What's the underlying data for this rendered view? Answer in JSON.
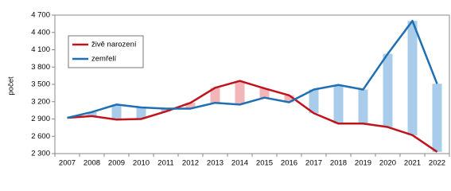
{
  "chart_data": {
    "type": "line",
    "ylabel": "počet",
    "categories": [
      "2007",
      "2008",
      "2009",
      "2010",
      "2011",
      "2012",
      "2013",
      "2014",
      "2015",
      "2016",
      "2017",
      "2018",
      "2019",
      "2020",
      "2021",
      "2022"
    ],
    "series": [
      {
        "name": "živě narození",
        "color": "#c0141c",
        "values": [
          2920,
          2950,
          2890,
          2900,
          3030,
          3180,
          3440,
          3560,
          3430,
          3310,
          3000,
          2820,
          2820,
          2760,
          2620,
          2330
        ]
      },
      {
        "name": "zemřelí",
        "color": "#1f6fb2",
        "values": [
          2920,
          3020,
          3150,
          3100,
          3080,
          3080,
          3180,
          3150,
          3270,
          3190,
          3410,
          3490,
          3410,
          4030,
          4600,
          3510
        ]
      }
    ],
    "difference_colors": [
      "#f2b5b8",
      "#a8cce9"
    ],
    "ylim": [
      2300,
      4700
    ],
    "yticks": [
      {
        "value": 2300,
        "label": "2 300"
      },
      {
        "value": 2600,
        "label": "2 600"
      },
      {
        "value": 2900,
        "label": "2 900"
      },
      {
        "value": 3200,
        "label": "3 200"
      },
      {
        "value": 3500,
        "label": "3 500"
      },
      {
        "value": 3800,
        "label": "3 800"
      },
      {
        "value": 4100,
        "label": "4 100"
      },
      {
        "value": 4400,
        "label": "4 400"
      },
      {
        "value": 4700,
        "label": "4 700"
      }
    ],
    "grid": false,
    "legend": "upper-left"
  }
}
